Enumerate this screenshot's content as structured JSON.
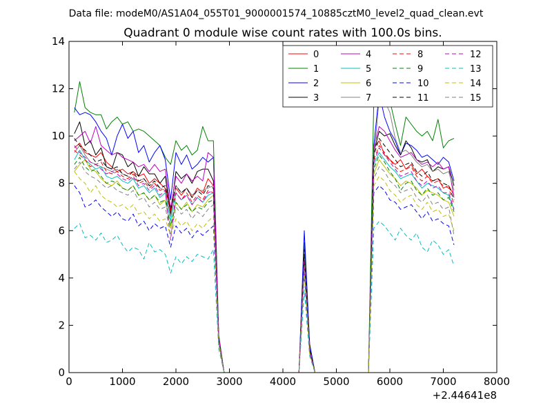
{
  "figure": {
    "suptitle": "Data file: modeM0/AS1A04_055T01_9000001574_10885cztM0_level2_quad_clean.evt"
  },
  "chart_data": {
    "type": "line",
    "title": "Quadrant 0 module wise count rates with 100.0s bins.",
    "xlabel": "",
    "ylabel": "",
    "xlim": [
      0,
      8000
    ],
    "ylim": [
      0,
      14
    ],
    "x_ticks": [
      0,
      1000,
      2000,
      3000,
      4000,
      5000,
      6000,
      7000,
      8000
    ],
    "y_ticks": [
      0,
      2,
      4,
      6,
      8,
      10,
      12,
      14
    ],
    "x_offset_label": "+2.44641e8",
    "legend_placement": "top-right",
    "legend_columns": 4,
    "x": [
      100,
      200,
      300,
      400,
      500,
      600,
      700,
      800,
      900,
      1000,
      1100,
      1200,
      1300,
      1400,
      1500,
      1600,
      1700,
      1800,
      1900,
      2000,
      2100,
      2200,
      2300,
      2400,
      2500,
      2600,
      2700,
      2800,
      2900,
      3000,
      3100,
      3200,
      3300,
      3400,
      3500,
      3600,
      3700,
      3800,
      3900,
      4000,
      4100,
      4200,
      4300,
      4400,
      4500,
      4600,
      4700,
      4800,
      4900,
      5000,
      5100,
      5200,
      5300,
      5400,
      5500,
      5600,
      5700,
      5800,
      5900,
      6000,
      6100,
      6200,
      6300,
      6400,
      6500,
      6600,
      6700,
      6800,
      6900,
      7000,
      7100,
      7200
    ],
    "series": [
      {
        "name": "0",
        "color": "#ff0000",
        "dash": "solid",
        "values": [
          9.5,
          9.7,
          9.3,
          9.2,
          9.1,
          9.3,
          8.9,
          8.7,
          8.5,
          8.6,
          8.4,
          8.5,
          8.3,
          8.4,
          8.0,
          8.2,
          8.0,
          7.8,
          7.0,
          7.8,
          7.5,
          7.8,
          7.4,
          7.8,
          7.6,
          8.2,
          7.9,
          1.5,
          0,
          0,
          0,
          0,
          0,
          0,
          0,
          0,
          0,
          0,
          0,
          0,
          0,
          0,
          0,
          5.0,
          1.0,
          0,
          0,
          0,
          0,
          0,
          0,
          0,
          0,
          0,
          0,
          0,
          9.5,
          9.8,
          9.2,
          9.0,
          8.8,
          9.0,
          8.6,
          8.8,
          8.4,
          8.6,
          8.3,
          8.1,
          8.2,
          7.8,
          7.9,
          7.5
        ]
      },
      {
        "name": "1",
        "color": "#008000",
        "dash": "solid",
        "values": [
          11.0,
          12.3,
          11.2,
          11.0,
          10.9,
          10.9,
          10.3,
          10.6,
          10.8,
          10.5,
          10.6,
          10.2,
          10.3,
          10.2,
          10.0,
          9.8,
          9.6,
          9.1,
          8.8,
          9.8,
          9.4,
          9.6,
          9.2,
          9.4,
          10.4,
          9.8,
          9.8,
          1.6,
          0,
          0,
          0,
          0,
          0,
          0,
          0,
          0,
          0,
          0,
          0,
          0,
          0,
          0,
          0,
          5.5,
          1.2,
          0,
          0,
          0,
          0,
          0,
          0,
          0,
          0,
          0,
          0,
          0,
          11.6,
          11.7,
          12.0,
          11.5,
          10.5,
          9.6,
          10.8,
          10.5,
          10.2,
          10.0,
          10.2,
          9.8,
          10.7,
          9.5,
          9.8,
          9.9
        ]
      },
      {
        "name": "2",
        "color": "#0000ff",
        "dash": "solid",
        "values": [
          11.2,
          10.9,
          11.0,
          10.9,
          10.6,
          10.2,
          9.9,
          9.2,
          10.0,
          10.5,
          9.9,
          10.2,
          9.3,
          9.6,
          8.9,
          9.3,
          9.6,
          9.0,
          7.3,
          9.3,
          8.8,
          9.2,
          8.6,
          8.8,
          9.1,
          8.9,
          9.1,
          1.5,
          0,
          0,
          0,
          0,
          0,
          0,
          0,
          0,
          0,
          0,
          0,
          0,
          0,
          0,
          0,
          6.0,
          1.2,
          0,
          0,
          0,
          0,
          0,
          0,
          0,
          0,
          0,
          0,
          0,
          9.6,
          11.8,
          10.8,
          10.2,
          9.8,
          9.2,
          9.7,
          9.6,
          9.4,
          9.1,
          9.2,
          9.0,
          8.8,
          9.1,
          8.9,
          8.1
        ]
      },
      {
        "name": "3",
        "color": "#000000",
        "dash": "solid",
        "values": [
          10.1,
          10.6,
          9.6,
          9.8,
          9.2,
          9.5,
          8.7,
          8.6,
          9.3,
          9.2,
          8.7,
          8.9,
          8.3,
          8.7,
          8.4,
          8.4,
          8.0,
          8.3,
          6.7,
          8.5,
          8.2,
          8.4,
          8.0,
          8.5,
          8.6,
          8.6,
          8.1,
          1.5,
          0,
          0,
          0,
          0,
          0,
          0,
          0,
          0,
          0,
          0,
          0,
          0,
          0,
          0,
          0,
          5.2,
          1.0,
          0,
          0,
          0,
          0,
          0,
          0,
          0,
          0,
          0,
          0,
          0,
          9.3,
          10.2,
          10.0,
          10.1,
          9.6,
          9.2,
          9.8,
          9.5,
          9.0,
          8.9,
          9.0,
          8.5,
          8.7,
          8.6,
          8.7,
          7.9
        ]
      },
      {
        "name": "4",
        "color": "#bf00bf",
        "dash": "solid",
        "values": [
          9.8,
          10.0,
          10.2,
          9.7,
          10.4,
          9.6,
          9.4,
          9.2,
          9.3,
          9.1,
          9.0,
          8.9,
          8.7,
          8.8,
          8.5,
          8.8,
          8.5,
          8.6,
          6.9,
          8.3,
          8.0,
          8.4,
          8.1,
          8.3,
          8.1,
          9.3,
          9.1,
          1.5,
          0,
          0,
          0,
          0,
          0,
          0,
          0,
          0,
          0,
          0,
          0,
          0,
          0,
          0,
          0,
          5.0,
          1.0,
          0,
          0,
          0,
          0,
          0,
          0,
          0,
          0,
          0,
          0,
          0,
          9.5,
          10.4,
          10.2,
          9.8,
          9.4,
          9.1,
          9.2,
          9.3,
          9.0,
          8.8,
          8.9,
          8.7,
          8.9,
          8.6,
          8.7,
          7.4
        ]
      },
      {
        "name": "5",
        "color": "#00bfbf",
        "dash": "solid",
        "values": [
          9.0,
          9.4,
          9.0,
          8.8,
          8.6,
          8.7,
          8.3,
          8.2,
          8.3,
          8.1,
          8.0,
          8.2,
          7.8,
          7.9,
          7.6,
          7.8,
          7.4,
          7.6,
          6.4,
          7.6,
          7.3,
          7.5,
          7.1,
          7.4,
          7.2,
          7.5,
          7.6,
          1.4,
          0,
          0,
          0,
          0,
          0,
          0,
          0,
          0,
          0,
          0,
          0,
          0,
          0,
          0,
          0,
          4.9,
          0.9,
          0,
          0,
          0,
          0,
          0,
          0,
          0,
          0,
          0,
          0,
          0,
          8.8,
          9.3,
          9.0,
          8.7,
          8.5,
          8.2,
          8.3,
          8.4,
          8.1,
          7.8,
          8.0,
          7.9,
          7.8,
          7.6,
          7.5,
          6.9
        ]
      },
      {
        "name": "6",
        "color": "#bfbf00",
        "dash": "solid",
        "values": [
          8.5,
          8.8,
          9.0,
          8.6,
          8.5,
          8.2,
          8.0,
          7.9,
          8.1,
          7.8,
          7.7,
          7.9,
          7.5,
          7.6,
          7.3,
          7.5,
          7.1,
          7.3,
          6.1,
          7.2,
          6.9,
          7.2,
          6.8,
          7.1,
          7.0,
          7.3,
          7.5,
          1.4,
          0,
          0,
          0,
          0,
          0,
          0,
          0,
          0,
          0,
          0,
          0,
          0,
          0,
          0,
          0,
          4.7,
          0.9,
          0,
          0,
          0,
          0,
          0,
          0,
          0,
          0,
          0,
          0,
          0,
          8.4,
          9.0,
          8.7,
          8.4,
          8.2,
          7.9,
          8.1,
          8.0,
          7.8,
          7.5,
          7.7,
          7.6,
          7.5,
          7.3,
          7.2,
          6.6
        ]
      },
      {
        "name": "7",
        "color": "#808080",
        "dash": "solid",
        "values": [
          9.3,
          9.6,
          9.2,
          8.9,
          8.8,
          8.7,
          8.6,
          8.5,
          8.6,
          8.4,
          8.3,
          8.2,
          8.1,
          8.2,
          7.9,
          8.0,
          7.8,
          7.7,
          6.6,
          7.9,
          7.6,
          7.8,
          7.5,
          7.7,
          7.7,
          7.8,
          7.9,
          1.4,
          0,
          0,
          0,
          0,
          0,
          0,
          0,
          0,
          0,
          0,
          0,
          0,
          0,
          0,
          0,
          5.1,
          1.0,
          0,
          0,
          0,
          0,
          0,
          0,
          0,
          0,
          0,
          0,
          0,
          9.0,
          11.6,
          11.5,
          11.0,
          9.9,
          9.3,
          9.4,
          9.2,
          8.9,
          8.7,
          8.8,
          8.5,
          8.6,
          8.4,
          8.5,
          7.7
        ]
      },
      {
        "name": "8",
        "color": "#ff0000",
        "dash": "dashed",
        "values": [
          9.4,
          9.2,
          9.0,
          8.7,
          8.8,
          8.9,
          8.5,
          8.4,
          8.5,
          8.3,
          8.2,
          8.4,
          8.0,
          8.1,
          7.8,
          8.0,
          7.7,
          7.8,
          6.8,
          7.6,
          7.3,
          7.6,
          7.2,
          7.5,
          7.3,
          7.7,
          7.6,
          1.4,
          0,
          0,
          0,
          0,
          0,
          0,
          0,
          0,
          0,
          0,
          0,
          0,
          0,
          0,
          0,
          4.8,
          0.9,
          0,
          0,
          0,
          0,
          0,
          0,
          0,
          0,
          0,
          0,
          0,
          9.0,
          9.6,
          9.3,
          9.0,
          8.7,
          8.5,
          8.6,
          8.7,
          8.3,
          8.1,
          8.3,
          8.0,
          8.1,
          7.9,
          7.8,
          7.1
        ]
      },
      {
        "name": "9",
        "color": "#008000",
        "dash": "dashed",
        "values": [
          8.8,
          9.1,
          8.7,
          8.5,
          8.6,
          8.3,
          8.0,
          8.1,
          8.0,
          7.8,
          7.7,
          7.9,
          7.5,
          7.6,
          7.3,
          7.5,
          7.2,
          7.3,
          6.2,
          7.2,
          6.9,
          7.1,
          6.8,
          7.0,
          6.9,
          7.2,
          7.3,
          1.3,
          0,
          0,
          0,
          0,
          0,
          0,
          0,
          0,
          0,
          0,
          0,
          0,
          0,
          0,
          0,
          4.6,
          0.9,
          0,
          0,
          0,
          0,
          0,
          0,
          0,
          0,
          0,
          0,
          0,
          8.6,
          9.2,
          8.9,
          8.5,
          8.2,
          7.7,
          8.0,
          8.1,
          7.7,
          7.5,
          7.8,
          7.5,
          7.6,
          7.3,
          7.4,
          6.8
        ]
      },
      {
        "name": "10",
        "color": "#0000ff",
        "dash": "dashed",
        "values": [
          7.9,
          7.6,
          7.0,
          7.1,
          7.3,
          7.0,
          6.8,
          6.6,
          6.8,
          6.5,
          6.4,
          6.7,
          6.2,
          6.4,
          6.0,
          6.3,
          6.1,
          6.2,
          5.3,
          6.2,
          5.9,
          6.1,
          5.7,
          6.0,
          5.8,
          6.0,
          6.2,
          1.2,
          0,
          0,
          0,
          0,
          0,
          0,
          0,
          0,
          0,
          0,
          0,
          0,
          0,
          0,
          0,
          4.2,
          0.8,
          0,
          0,
          0,
          0,
          0,
          0,
          0,
          0,
          0,
          0,
          0,
          7.6,
          7.9,
          7.7,
          7.3,
          7.2,
          6.9,
          7.0,
          7.1,
          6.8,
          6.5,
          6.8,
          6.4,
          6.5,
          6.3,
          6.2,
          5.4
        ]
      },
      {
        "name": "11",
        "color": "#000000",
        "dash": "dashed",
        "values": [
          9.9,
          9.6,
          9.4,
          9.2,
          8.9,
          9.0,
          8.7,
          8.6,
          8.7,
          8.4,
          8.3,
          8.5,
          8.1,
          8.2,
          7.9,
          8.1,
          7.8,
          7.9,
          6.9,
          7.9,
          7.6,
          7.8,
          7.4,
          7.7,
          7.5,
          7.9,
          7.8,
          1.4,
          0,
          0,
          0,
          0,
          0,
          0,
          0,
          0,
          0,
          0,
          0,
          0,
          0,
          0,
          0,
          5.0,
          1.0,
          0,
          0,
          0,
          0,
          0,
          0,
          0,
          0,
          0,
          0,
          0,
          9.2,
          9.9,
          9.6,
          9.3,
          9.0,
          8.7,
          8.8,
          8.9,
          8.5,
          8.3,
          8.5,
          8.1,
          8.2,
          8.0,
          7.9,
          7.3
        ]
      },
      {
        "name": "12",
        "color": "#bf00bf",
        "dash": "dashed",
        "values": [
          9.6,
          9.3,
          9.1,
          8.9,
          8.8,
          8.6,
          8.4,
          8.5,
          8.4,
          8.2,
          8.1,
          8.3,
          7.9,
          8.0,
          7.7,
          7.9,
          7.5,
          7.7,
          5.6,
          7.6,
          7.3,
          7.5,
          7.1,
          7.4,
          7.2,
          7.6,
          7.7,
          1.4,
          0,
          0,
          0,
          0,
          0,
          0,
          0,
          0,
          0,
          0,
          0,
          0,
          0,
          0,
          0,
          4.7,
          0.9,
          0,
          0,
          0,
          0,
          0,
          0,
          0,
          0,
          0,
          0,
          0,
          8.9,
          9.5,
          9.2,
          8.9,
          8.6,
          8.3,
          8.4,
          8.5,
          8.1,
          7.9,
          8.1,
          7.8,
          7.9,
          7.6,
          7.6,
          6.9
        ]
      },
      {
        "name": "13",
        "color": "#00bfbf",
        "dash": "dashed",
        "values": [
          6.1,
          6.3,
          5.7,
          5.8,
          5.6,
          5.9,
          5.5,
          5.6,
          5.8,
          5.4,
          5.1,
          5.3,
          5.2,
          4.8,
          5.5,
          5.1,
          5.2,
          5.0,
          4.2,
          4.9,
          4.6,
          4.9,
          4.7,
          5.0,
          4.9,
          4.8,
          5.2,
          1.0,
          0,
          0,
          0,
          0,
          0,
          0,
          0,
          0,
          0,
          0,
          0,
          0,
          0,
          0,
          0,
          3.5,
          0.7,
          0,
          0,
          0,
          0,
          0,
          0,
          0,
          0,
          0,
          0,
          0,
          6.1,
          6.4,
          6.2,
          5.9,
          5.6,
          6.1,
          5.8,
          5.6,
          5.9,
          5.3,
          5.1,
          5.6,
          5.4,
          5.0,
          5.2,
          4.5
        ]
      },
      {
        "name": "14",
        "color": "#bfbf00",
        "dash": "dashed",
        "values": [
          8.5,
          8.2,
          8.0,
          7.6,
          7.9,
          7.5,
          7.3,
          7.2,
          7.0,
          7.1,
          6.9,
          7.1,
          6.7,
          6.8,
          6.5,
          6.7,
          6.4,
          6.5,
          5.8,
          6.5,
          6.2,
          6.4,
          6.0,
          6.3,
          6.1,
          6.4,
          6.6,
          1.2,
          0,
          0,
          0,
          0,
          0,
          0,
          0,
          0,
          0,
          0,
          0,
          0,
          0,
          0,
          0,
          4.3,
          0.8,
          0,
          0,
          0,
          0,
          0,
          0,
          0,
          0,
          0,
          0,
          0,
          7.9,
          8.3,
          8.1,
          7.7,
          7.5,
          7.2,
          7.4,
          7.5,
          7.1,
          6.9,
          7.2,
          6.8,
          6.9,
          6.6,
          6.7,
          6.0
        ]
      },
      {
        "name": "15",
        "color": "#808080",
        "dash": "dashed",
        "values": [
          8.6,
          8.9,
          8.5,
          8.3,
          8.2,
          8.0,
          7.8,
          7.9,
          7.7,
          7.6,
          7.5,
          7.7,
          7.3,
          7.4,
          7.0,
          7.2,
          6.9,
          7.0,
          5.8,
          7.0,
          6.7,
          6.9,
          6.5,
          6.8,
          6.6,
          6.9,
          7.1,
          1.3,
          0,
          0,
          0,
          0,
          0,
          0,
          0,
          0,
          0,
          0,
          0,
          0,
          0,
          0,
          0,
          4.5,
          0.8,
          0,
          0,
          0,
          0,
          0,
          0,
          0,
          0,
          0,
          0,
          0,
          8.2,
          8.7,
          8.5,
          8.1,
          7.9,
          7.6,
          7.7,
          7.8,
          7.4,
          7.2,
          7.5,
          7.1,
          7.2,
          6.9,
          7.0,
          5.8
        ]
      }
    ]
  }
}
